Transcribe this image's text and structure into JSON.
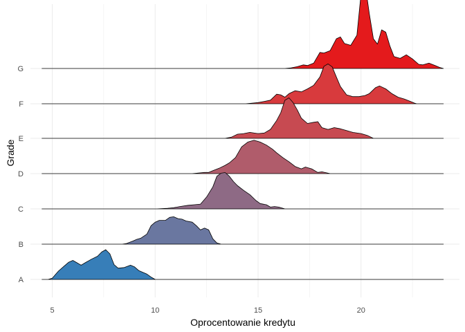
{
  "chart_data": {
    "type": "ridgeline",
    "xlabel": "Oprocentowanie kredytu",
    "ylabel": "Grade",
    "xlim": [
      4.5,
      24
    ],
    "x_ticks": [
      5,
      10,
      15,
      20
    ],
    "grid": true,
    "legend": "none",
    "colors": {
      "A": "#377eb8",
      "B": "#6a77a0",
      "C": "#8e6a85",
      "D": "#b05c6b",
      "E": "#c74a51",
      "F": "#d83a3d",
      "G": "#e41a1c"
    },
    "series": [
      {
        "name": "A",
        "points": [
          [
            4.8,
            0
          ],
          [
            5.0,
            0.04
          ],
          [
            5.3,
            0.28
          ],
          [
            5.6,
            0.46
          ],
          [
            5.8,
            0.58
          ],
          [
            6.0,
            0.64
          ],
          [
            6.2,
            0.56
          ],
          [
            6.4,
            0.48
          ],
          [
            6.6,
            0.56
          ],
          [
            6.9,
            0.68
          ],
          [
            7.2,
            0.78
          ],
          [
            7.4,
            0.92
          ],
          [
            7.6,
            1.0
          ],
          [
            7.8,
            0.86
          ],
          [
            8.0,
            0.5
          ],
          [
            8.2,
            0.38
          ],
          [
            8.5,
            0.4
          ],
          [
            8.8,
            0.48
          ],
          [
            9.0,
            0.42
          ],
          [
            9.2,
            0.3
          ],
          [
            9.4,
            0.24
          ],
          [
            9.6,
            0.18
          ],
          [
            9.8,
            0.08
          ],
          [
            10.0,
            0
          ]
        ]
      },
      {
        "name": "B",
        "points": [
          [
            8.4,
            0
          ],
          [
            8.6,
            0.02
          ],
          [
            8.9,
            0.1
          ],
          [
            9.1,
            0.16
          ],
          [
            9.3,
            0.2
          ],
          [
            9.6,
            0.34
          ],
          [
            9.8,
            0.62
          ],
          [
            10.0,
            0.74
          ],
          [
            10.2,
            0.8
          ],
          [
            10.5,
            0.8
          ],
          [
            10.7,
            0.9
          ],
          [
            10.9,
            0.92
          ],
          [
            11.1,
            0.86
          ],
          [
            11.3,
            0.84
          ],
          [
            11.5,
            0.78
          ],
          [
            11.8,
            0.74
          ],
          [
            12.0,
            0.62
          ],
          [
            12.2,
            0.48
          ],
          [
            12.4,
            0.54
          ],
          [
            12.6,
            0.48
          ],
          [
            12.8,
            0.18
          ],
          [
            13.0,
            0.04
          ],
          [
            13.2,
            0
          ]
        ]
      },
      {
        "name": "C",
        "points": [
          [
            10.1,
            0
          ],
          [
            10.3,
            0.01
          ],
          [
            10.6,
            0.02
          ],
          [
            10.9,
            0.04
          ],
          [
            11.2,
            0.08
          ],
          [
            11.6,
            0.12
          ],
          [
            11.9,
            0.14
          ],
          [
            12.2,
            0.16
          ],
          [
            12.5,
            0.4
          ],
          [
            12.8,
            0.74
          ],
          [
            13.0,
            1.1
          ],
          [
            13.2,
            1.2
          ],
          [
            13.4,
            1.22
          ],
          [
            13.6,
            1.1
          ],
          [
            13.8,
            0.92
          ],
          [
            14.0,
            0.78
          ],
          [
            14.3,
            0.62
          ],
          [
            14.6,
            0.48
          ],
          [
            14.9,
            0.28
          ],
          [
            15.1,
            0.18
          ],
          [
            15.4,
            0.14
          ],
          [
            15.6,
            0.06
          ],
          [
            15.8,
            0.08
          ],
          [
            16.0,
            0.06
          ],
          [
            16.3,
            0
          ]
        ]
      },
      {
        "name": "D",
        "points": [
          [
            11.8,
            0
          ],
          [
            12.1,
            0.02
          ],
          [
            12.4,
            0.04
          ],
          [
            12.6,
            0.04
          ],
          [
            12.8,
            0.1
          ],
          [
            13.1,
            0.18
          ],
          [
            13.4,
            0.28
          ],
          [
            13.6,
            0.36
          ],
          [
            13.9,
            0.54
          ],
          [
            14.2,
            0.9
          ],
          [
            14.5,
            1.06
          ],
          [
            14.8,
            1.12
          ],
          [
            15.1,
            1.06
          ],
          [
            15.4,
            0.96
          ],
          [
            15.7,
            0.82
          ],
          [
            15.9,
            0.7
          ],
          [
            16.2,
            0.54
          ],
          [
            16.5,
            0.4
          ],
          [
            16.8,
            0.24
          ],
          [
            17.1,
            0.16
          ],
          [
            17.3,
            0.22
          ],
          [
            17.6,
            0.16
          ],
          [
            17.9,
            0.04
          ],
          [
            18.1,
            0.06
          ],
          [
            18.5,
            0
          ]
        ]
      },
      {
        "name": "E",
        "points": [
          [
            13.4,
            0
          ],
          [
            13.7,
            0.04
          ],
          [
            14.0,
            0.14
          ],
          [
            14.3,
            0.16
          ],
          [
            14.6,
            0.2
          ],
          [
            15.0,
            0.16
          ],
          [
            15.3,
            0.18
          ],
          [
            15.6,
            0.3
          ],
          [
            15.9,
            0.6
          ],
          [
            16.1,
            0.86
          ],
          [
            16.3,
            1.28
          ],
          [
            16.5,
            1.36
          ],
          [
            16.7,
            1.2
          ],
          [
            16.9,
            0.96
          ],
          [
            17.1,
            0.68
          ],
          [
            17.4,
            0.5
          ],
          [
            17.7,
            0.54
          ],
          [
            17.9,
            0.56
          ],
          [
            18.1,
            0.36
          ],
          [
            18.4,
            0.3
          ],
          [
            18.7,
            0.36
          ],
          [
            19.0,
            0.32
          ],
          [
            19.3,
            0.26
          ],
          [
            19.6,
            0.2
          ],
          [
            20.0,
            0.16
          ],
          [
            20.3,
            0.1
          ],
          [
            20.6,
            0
          ]
        ]
      },
      {
        "name": "F",
        "points": [
          [
            14.4,
            0
          ],
          [
            14.7,
            0.02
          ],
          [
            15.0,
            0.04
          ],
          [
            15.3,
            0.08
          ],
          [
            15.6,
            0.12
          ],
          [
            15.9,
            0.32
          ],
          [
            16.1,
            0.3
          ],
          [
            16.3,
            0.22
          ],
          [
            16.5,
            0.34
          ],
          [
            16.8,
            0.44
          ],
          [
            17.1,
            0.4
          ],
          [
            17.4,
            0.5
          ],
          [
            17.7,
            0.62
          ],
          [
            18.0,
            0.9
          ],
          [
            18.2,
            1.26
          ],
          [
            18.4,
            1.34
          ],
          [
            18.6,
            1.24
          ],
          [
            18.8,
            0.9
          ],
          [
            19.0,
            0.58
          ],
          [
            19.3,
            0.3
          ],
          [
            19.6,
            0.24
          ],
          [
            19.9,
            0.24
          ],
          [
            20.2,
            0.28
          ],
          [
            20.4,
            0.34
          ],
          [
            20.7,
            0.54
          ],
          [
            20.9,
            0.6
          ],
          [
            21.2,
            0.5
          ],
          [
            21.5,
            0.34
          ],
          [
            21.8,
            0.22
          ],
          [
            22.1,
            0.16
          ],
          [
            22.4,
            0.08
          ],
          [
            22.6,
            0.02
          ],
          [
            22.7,
            0
          ]
        ]
      },
      {
        "name": "G",
        "points": [
          [
            16.3,
            0
          ],
          [
            16.6,
            0.02
          ],
          [
            16.9,
            0.06
          ],
          [
            17.2,
            0.12
          ],
          [
            17.4,
            0.1
          ],
          [
            17.7,
            0.18
          ],
          [
            18.0,
            0.54
          ],
          [
            18.2,
            0.52
          ],
          [
            18.5,
            0.6
          ],
          [
            18.8,
            1.0
          ],
          [
            19.0,
            1.06
          ],
          [
            19.2,
            0.84
          ],
          [
            19.5,
            0.78
          ],
          [
            19.8,
            1.12
          ],
          [
            20.0,
            2.52
          ],
          [
            20.1,
            2.96
          ],
          [
            20.2,
            2.84
          ],
          [
            20.4,
            1.86
          ],
          [
            20.6,
            1.0
          ],
          [
            20.8,
            0.82
          ],
          [
            21.0,
            1.3
          ],
          [
            21.2,
            1.22
          ],
          [
            21.4,
            0.76
          ],
          [
            21.6,
            0.4
          ],
          [
            21.9,
            0.34
          ],
          [
            22.2,
            0.46
          ],
          [
            22.5,
            0.32
          ],
          [
            22.8,
            0.14
          ],
          [
            23.0,
            0.12
          ],
          [
            23.3,
            0.18
          ],
          [
            23.6,
            0.1
          ],
          [
            23.8,
            0.04
          ],
          [
            24.0,
            0
          ]
        ]
      }
    ]
  }
}
